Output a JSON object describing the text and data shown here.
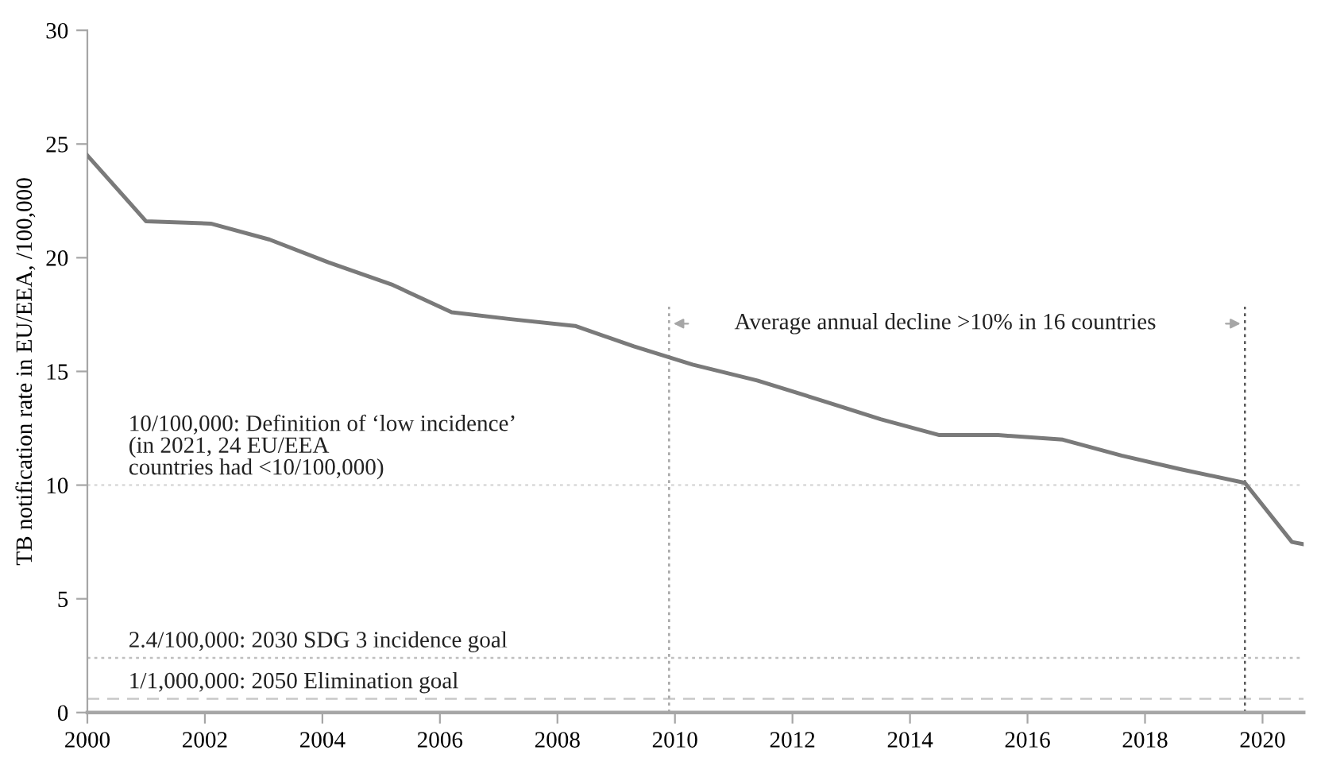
{
  "chart_data": {
    "type": "line",
    "ylabel": "TB notification rate in EU/EEA, /100,000",
    "x": [
      2000.0,
      2001.0,
      2002.1,
      2003.1,
      2004.1,
      2005.2,
      2006.2,
      2007.2,
      2008.3,
      2009.3,
      2010.3,
      2011.4,
      2012.4,
      2013.5,
      2014.5,
      2015.5,
      2016.6,
      2017.6,
      2018.6,
      2019.7,
      2020.5,
      2020.7
    ],
    "series": [
      {
        "color": "#7a7a7a",
        "values": [
          24.5,
          21.6,
          21.5,
          20.8,
          19.8,
          18.8,
          17.6,
          17.3,
          17.0,
          16.1,
          15.3,
          14.6,
          13.8,
          12.9,
          12.2,
          12.2,
          12.0,
          11.3,
          10.7,
          10.1,
          7.5,
          7.4
        ]
      }
    ],
    "xlim": [
      2000,
      2020.7
    ],
    "xticks": [
      2000,
      2002,
      2004,
      2006,
      2008,
      2010,
      2012,
      2014,
      2016,
      2018,
      2020
    ],
    "ylim": [
      0,
      30
    ],
    "yticks": [
      0,
      5,
      10,
      15,
      20,
      25,
      30
    ],
    "grid": false,
    "marker": "none",
    "line_style": "solid",
    "ref_lines": [
      {
        "axis": "y",
        "value": 10,
        "label": "10/100,000: Definition of ‘low incidence’\n(in 2021, 24 EU/EEA\ncountries had <10/100,000)",
        "color": "#d9d9d9",
        "line_style": "dotted"
      },
      {
        "axis": "y",
        "value": 2.4,
        "label": "2.4/100,000: 2030 SDG 3 incidence goal",
        "color": "#bfbfbf",
        "line_style": "dotted"
      },
      {
        "axis": "y",
        "value": 0.6,
        "label": "1/1,000,000: 2050 Elimination goal",
        "color": "#c8c8c8",
        "line_style": "dashed"
      },
      {
        "axis": "x",
        "value": 2009.9,
        "color": "#a6a6a6",
        "line_style": "dotted"
      },
      {
        "axis": "x",
        "value": 2019.7,
        "color": "#595959",
        "line_style": "dotted"
      }
    ],
    "annotations": [
      "Average annual decline >10% in 16 countries"
    ]
  }
}
